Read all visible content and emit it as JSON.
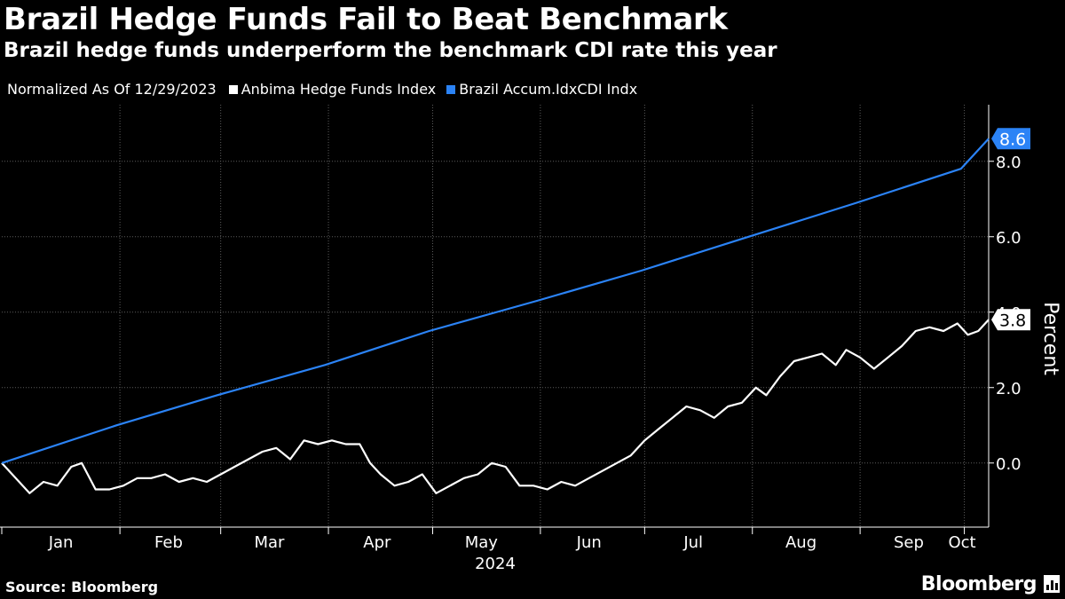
{
  "header": {
    "title": "Brazil Hedge Funds Fail to Beat Benchmark",
    "subtitle": "Brazil hedge funds underperform the benchmark CDI rate this year"
  },
  "legend": {
    "note": "Normalized As Of 12/29/2023",
    "items": [
      {
        "label": "Anbima Hedge Funds Index",
        "color": "#ffffff"
      },
      {
        "label": "Brazil Accum.IdxCDI Indx",
        "color": "#2b83f6"
      }
    ]
  },
  "footer": {
    "source": "Source: Bloomberg",
    "brand": "Bloomberg"
  },
  "chart_data": {
    "type": "line",
    "xlabel": "2024",
    "ylabel": "Percent",
    "x_ticks": [
      "Jan",
      "Feb",
      "Mar",
      "Apr",
      "May",
      "Jun",
      "Jul",
      "Aug",
      "Sep",
      "Oct"
    ],
    "y_ticks": [
      "0.0",
      "2.0",
      "4.0",
      "6.0",
      "8.0"
    ],
    "x_range": [
      "2023-12-29",
      "2024-10-08"
    ],
    "ylim": [
      -1.7,
      9.5
    ],
    "grid": true,
    "series": [
      {
        "name": "Anbima Hedge Funds Index",
        "color": "#ffffff",
        "end_label": "3.8",
        "points": [
          [
            "2023-12-29",
            0.0
          ],
          [
            "2024-01-03",
            -0.5
          ],
          [
            "2024-01-06",
            -0.8
          ],
          [
            "2024-01-10",
            -0.5
          ],
          [
            "2024-01-14",
            -0.6
          ],
          [
            "2024-01-18",
            -0.1
          ],
          [
            "2024-01-21",
            0.0
          ],
          [
            "2024-01-25",
            -0.7
          ],
          [
            "2024-01-29",
            -0.7
          ],
          [
            "2024-02-02",
            -0.6
          ],
          [
            "2024-02-06",
            -0.4
          ],
          [
            "2024-02-10",
            -0.4
          ],
          [
            "2024-02-14",
            -0.3
          ],
          [
            "2024-02-18",
            -0.5
          ],
          [
            "2024-02-22",
            -0.4
          ],
          [
            "2024-02-26",
            -0.5
          ],
          [
            "2024-03-01",
            -0.3
          ],
          [
            "2024-03-05",
            -0.1
          ],
          [
            "2024-03-09",
            0.1
          ],
          [
            "2024-03-13",
            0.3
          ],
          [
            "2024-03-17",
            0.4
          ],
          [
            "2024-03-21",
            0.1
          ],
          [
            "2024-03-25",
            0.6
          ],
          [
            "2024-03-29",
            0.5
          ],
          [
            "2024-04-02",
            0.6
          ],
          [
            "2024-04-06",
            0.5
          ],
          [
            "2024-04-10",
            0.5
          ],
          [
            "2024-04-13",
            0.0
          ],
          [
            "2024-04-16",
            -0.3
          ],
          [
            "2024-04-20",
            -0.6
          ],
          [
            "2024-04-24",
            -0.5
          ],
          [
            "2024-04-28",
            -0.3
          ],
          [
            "2024-05-02",
            -0.8
          ],
          [
            "2024-05-06",
            -0.6
          ],
          [
            "2024-05-10",
            -0.4
          ],
          [
            "2024-05-14",
            -0.3
          ],
          [
            "2024-05-18",
            0.0
          ],
          [
            "2024-05-22",
            -0.1
          ],
          [
            "2024-05-26",
            -0.6
          ],
          [
            "2024-05-30",
            -0.6
          ],
          [
            "2024-06-03",
            -0.7
          ],
          [
            "2024-06-07",
            -0.5
          ],
          [
            "2024-06-11",
            -0.6
          ],
          [
            "2024-06-15",
            -0.4
          ],
          [
            "2024-06-19",
            -0.2
          ],
          [
            "2024-06-23",
            0.0
          ],
          [
            "2024-06-27",
            0.2
          ],
          [
            "2024-07-01",
            0.6
          ],
          [
            "2024-07-05",
            0.9
          ],
          [
            "2024-07-09",
            1.2
          ],
          [
            "2024-07-13",
            1.5
          ],
          [
            "2024-07-17",
            1.4
          ],
          [
            "2024-07-21",
            1.2
          ],
          [
            "2024-07-25",
            1.5
          ],
          [
            "2024-07-29",
            1.6
          ],
          [
            "2024-08-02",
            2.0
          ],
          [
            "2024-08-05",
            1.8
          ],
          [
            "2024-08-09",
            2.3
          ],
          [
            "2024-08-13",
            2.7
          ],
          [
            "2024-08-17",
            2.8
          ],
          [
            "2024-08-21",
            2.9
          ],
          [
            "2024-08-25",
            2.6
          ],
          [
            "2024-08-28",
            3.0
          ],
          [
            "2024-09-01",
            2.8
          ],
          [
            "2024-09-05",
            2.5
          ],
          [
            "2024-09-09",
            2.8
          ],
          [
            "2024-09-13",
            3.1
          ],
          [
            "2024-09-17",
            3.5
          ],
          [
            "2024-09-21",
            3.6
          ],
          [
            "2024-09-25",
            3.5
          ],
          [
            "2024-09-29",
            3.7
          ],
          [
            "2024-10-02",
            3.4
          ],
          [
            "2024-10-05",
            3.5
          ],
          [
            "2024-10-08",
            3.8
          ]
        ]
      },
      {
        "name": "Brazil Accum.IdxCDI Indx",
        "color": "#2b83f6",
        "end_label": "8.6",
        "points": [
          [
            "2023-12-29",
            0.0
          ],
          [
            "2024-01-31",
            1.0
          ],
          [
            "2024-02-29",
            1.8
          ],
          [
            "2024-03-31",
            2.6
          ],
          [
            "2024-04-30",
            3.5
          ],
          [
            "2024-05-31",
            4.3
          ],
          [
            "2024-06-30",
            5.1
          ],
          [
            "2024-07-31",
            6.0
          ],
          [
            "2024-08-31",
            6.9
          ],
          [
            "2024-09-30",
            7.8
          ],
          [
            "2024-10-08",
            8.6
          ]
        ]
      }
    ]
  }
}
